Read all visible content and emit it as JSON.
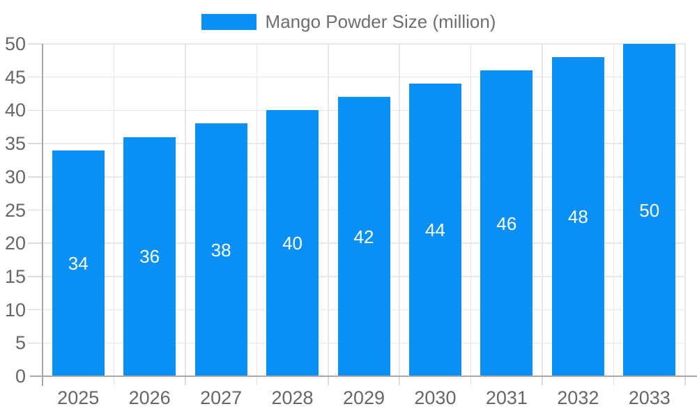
{
  "legend": {
    "label": "Mango Powder Size (million)"
  },
  "chart_data": {
    "type": "bar",
    "title": "",
    "xlabel": "",
    "ylabel": "",
    "categories": [
      "2025",
      "2026",
      "2027",
      "2028",
      "2029",
      "2030",
      "2031",
      "2032",
      "2033"
    ],
    "series": [
      {
        "name": "Mango Powder Size (million)",
        "values": [
          34,
          36,
          38,
          40,
          42,
          44,
          46,
          48,
          50
        ]
      }
    ],
    "data_labels": [
      34,
      36,
      38,
      40,
      42,
      44,
      46,
      48,
      50
    ],
    "yticks": [
      0,
      5,
      10,
      15,
      20,
      25,
      30,
      35,
      40,
      45,
      50
    ],
    "ylim": [
      0,
      50
    ],
    "grid": true,
    "legend_position": "top-center",
    "colors": {
      "bar": "#0a90f5",
      "value_label": "#ffffff",
      "grid_line": "#e7e7e7",
      "tick_mark": "#dcdcdc",
      "axis_line": "#a8a8a8",
      "tick_text": "#666666",
      "legend_text": "#6e6e6e",
      "background": "#ffffff"
    }
  }
}
